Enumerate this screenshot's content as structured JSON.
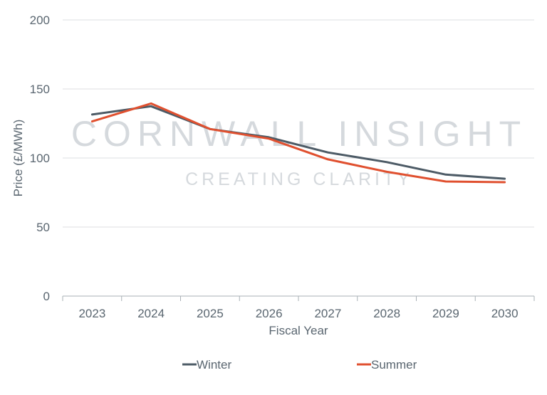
{
  "chart_data": {
    "type": "line",
    "categories": [
      "2023",
      "2024",
      "2025",
      "2026",
      "2027",
      "2028",
      "2029",
      "2030"
    ],
    "series": [
      {
        "name": "Winter",
        "color": "#4d5b66",
        "values": [
          131.5,
          137.5,
          121,
          115,
          104,
          97,
          88,
          85
        ]
      },
      {
        "name": "Summer",
        "color": "#e0502f",
        "values": [
          126.5,
          139.5,
          121,
          114,
          99,
          90,
          83,
          82.5
        ]
      }
    ],
    "xlabel": "Fiscal Year",
    "ylabel": "Price (£/MWh)",
    "ylim": [
      0,
      200
    ],
    "yticks": [
      0,
      50,
      100,
      150,
      200
    ],
    "grid": true,
    "legend_position": "bottom"
  },
  "watermark": {
    "line1": "CORNWALL INSIGHT",
    "line2": "CREATING CLARITY"
  }
}
